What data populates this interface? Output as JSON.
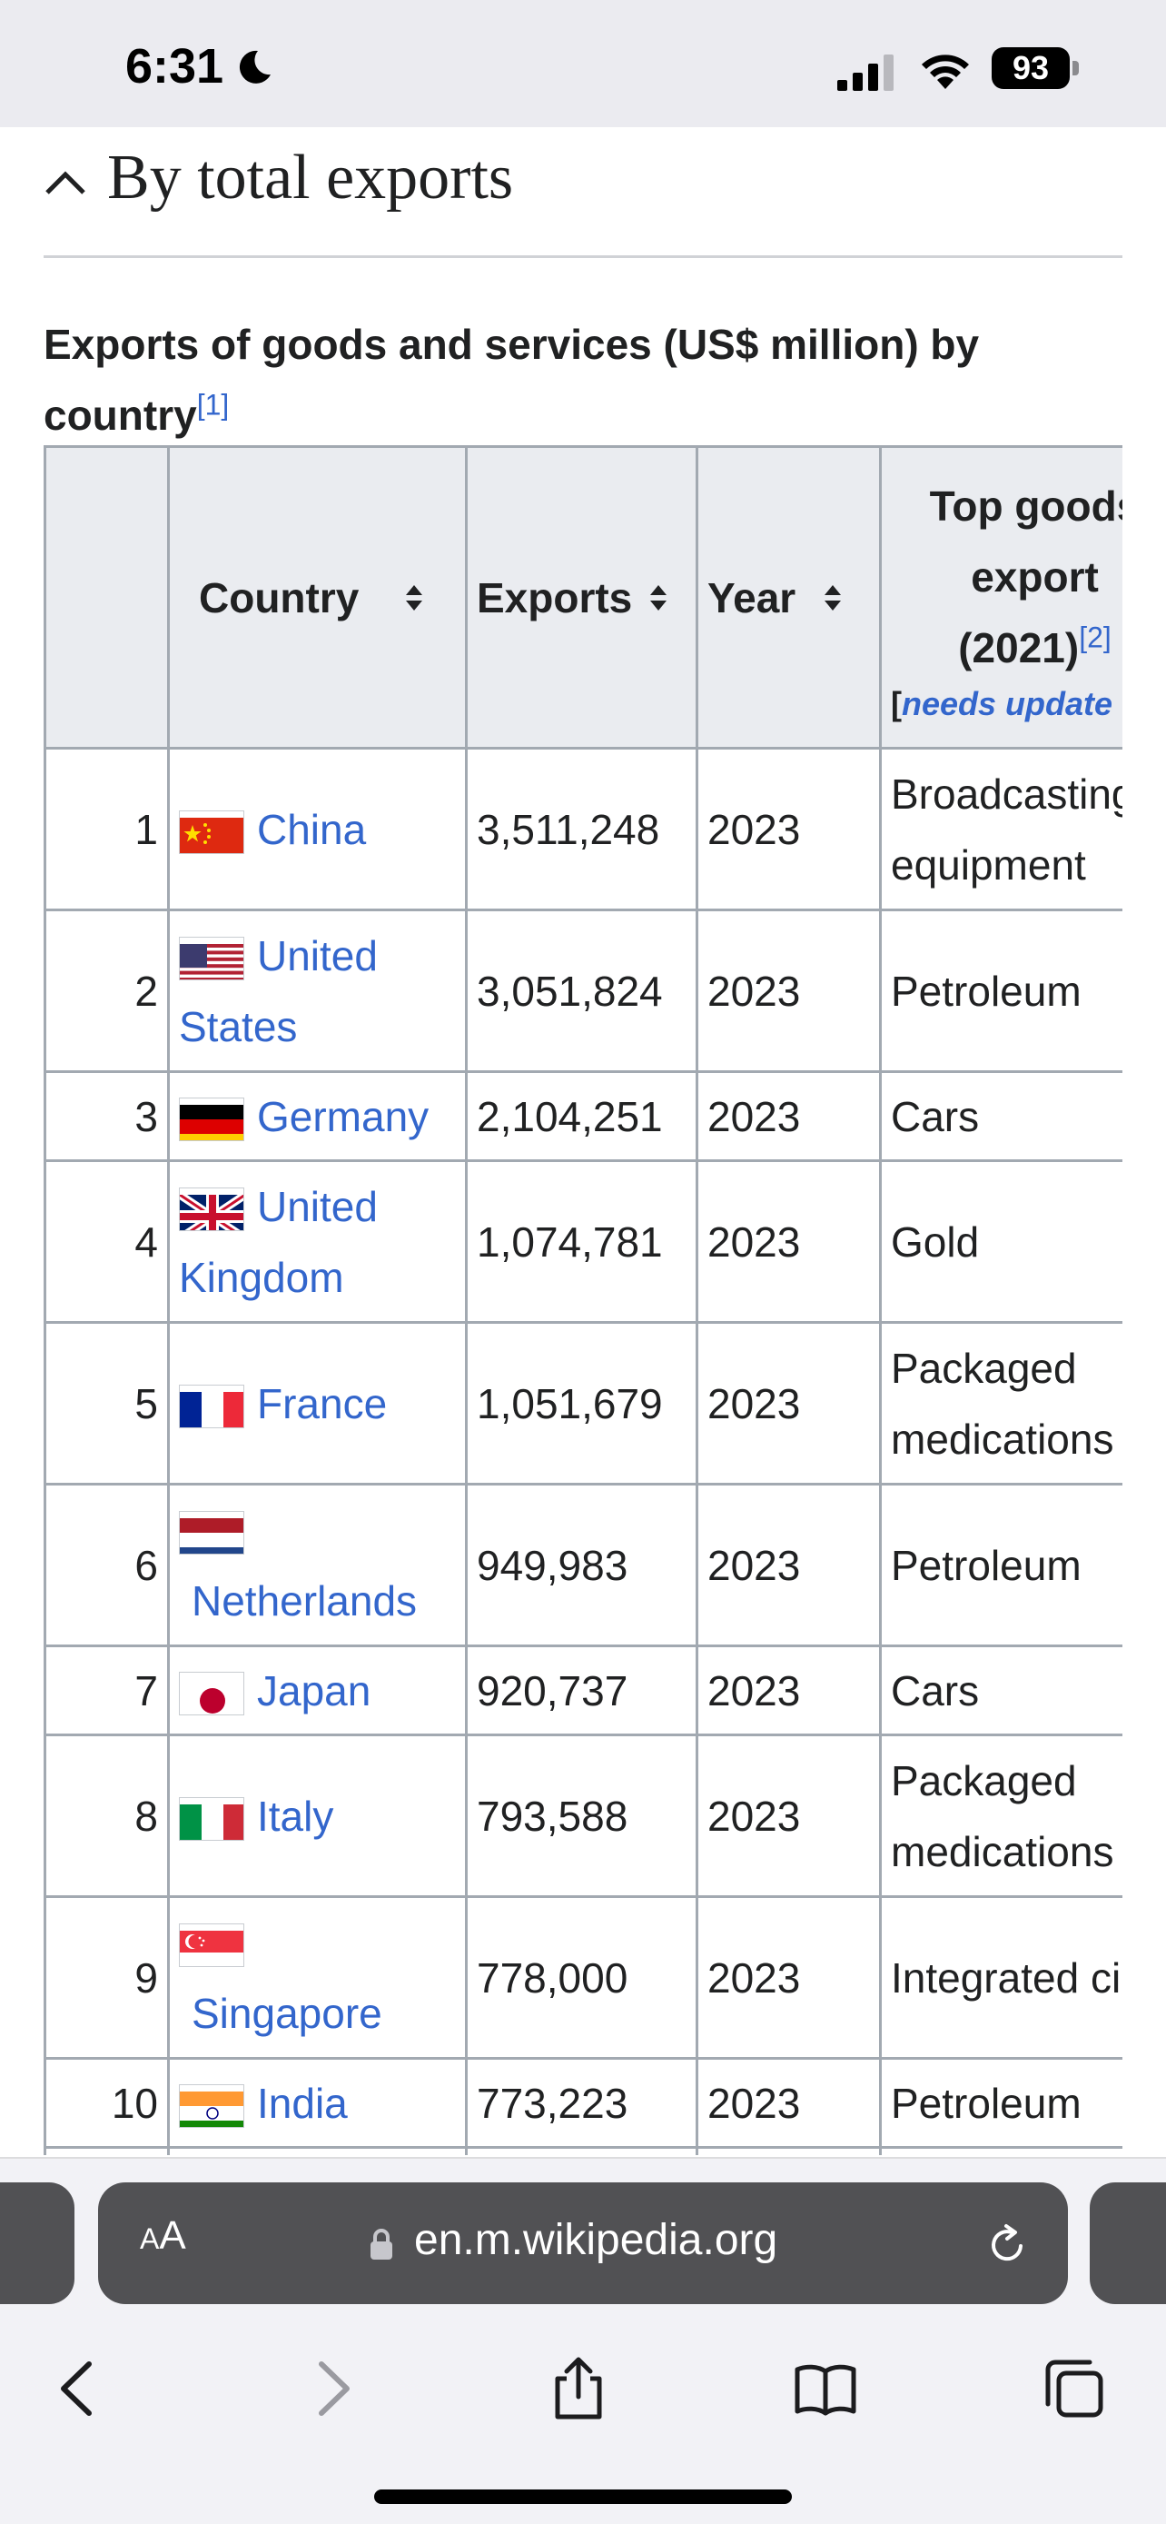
{
  "status_bar": {
    "time": "6:31",
    "battery": "93"
  },
  "section": {
    "title": "By total exports"
  },
  "caption": {
    "text": "Exports of goods and services (US$ million) by country",
    "ref": "[1]"
  },
  "table": {
    "headers": {
      "country": "Country",
      "exports": "Exports",
      "year": "Year",
      "top_line1": "Top goods",
      "top_line2": "export",
      "top_line3": "(2021)",
      "top_ref": "[2]",
      "needs_open": "[",
      "needs_update": "needs update"
    },
    "rows": [
      {
        "rank": "1",
        "country": "China",
        "exports": "3,511,248",
        "year": "2023",
        "top": "Broadcasting equipment"
      },
      {
        "rank": "2",
        "country": "United States",
        "exports": "3,051,824",
        "year": "2023",
        "top": "Petroleum"
      },
      {
        "rank": "3",
        "country": "Germany",
        "exports": "2,104,251",
        "year": "2023",
        "top": "Cars"
      },
      {
        "rank": "4",
        "country": "United Kingdom",
        "exports": "1,074,781",
        "year": "2023",
        "top": "Gold"
      },
      {
        "rank": "5",
        "country": "France",
        "exports": "1,051,679",
        "year": "2023",
        "top": "Packaged medications"
      },
      {
        "rank": "6",
        "country": "Netherlands",
        "exports": "949,983",
        "year": "2023",
        "top": "Petroleum"
      },
      {
        "rank": "7",
        "country": "Japan",
        "exports": "920,737",
        "year": "2023",
        "top": "Cars"
      },
      {
        "rank": "8",
        "country": "Italy",
        "exports": "793,588",
        "year": "2023",
        "top": "Packaged medications"
      },
      {
        "rank": "9",
        "country": "Singapore",
        "exports": "778,000",
        "year": "2023",
        "top": "Integrated circuits"
      },
      {
        "rank": "10",
        "country": "India",
        "exports": "773,223",
        "year": "2023",
        "top": "Petroleum"
      }
    ]
  },
  "browser": {
    "aa_small": "A",
    "aa_large": "A",
    "url": "en.m.wikipedia.org"
  },
  "colors": {
    "link": "#3366cc",
    "header_bg": "#eaecf0",
    "border": "#a2a9b1",
    "address_bar": "#515154"
  }
}
